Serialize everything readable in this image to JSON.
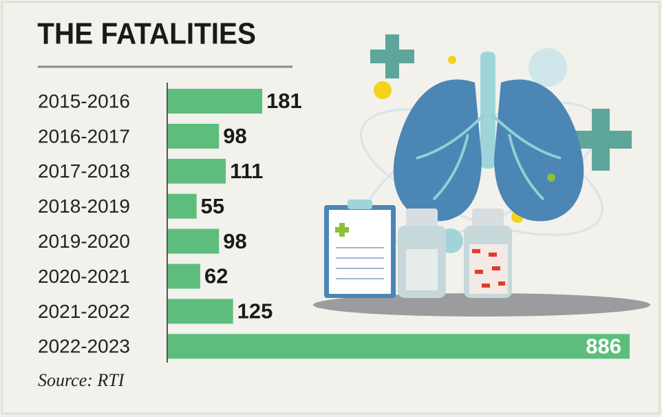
{
  "chart_data": {
    "type": "bar",
    "orientation": "horizontal",
    "title": "THE FATALITIES",
    "categories": [
      "2015-2016",
      "2016-2017",
      "2017-2018",
      "2018-2019",
      "2019-2020",
      "2020-2021",
      "2021-2022",
      "2022-2023"
    ],
    "values": [
      181,
      98,
      111,
      55,
      98,
      62,
      125,
      886
    ],
    "color": "#5dbd7d",
    "source": "Source: RTI"
  }
}
